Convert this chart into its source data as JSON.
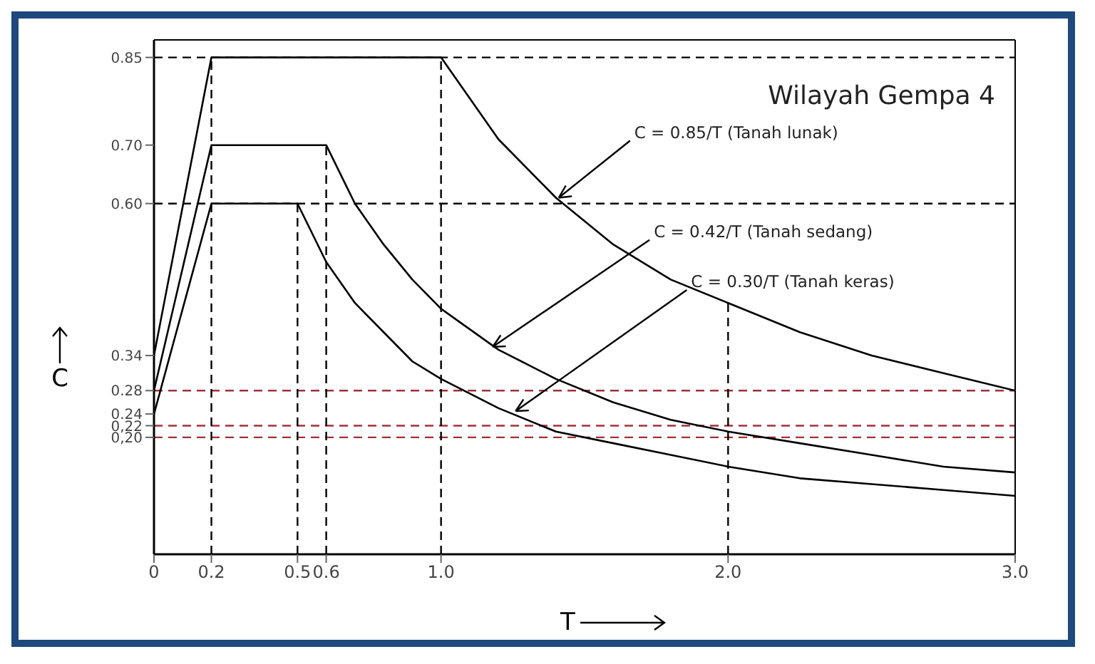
{
  "chart_data": {
    "type": "line",
    "title": "Wilayah Gempa 4",
    "xlabel": "T",
    "ylabel": "C",
    "xlim": [
      0,
      3
    ],
    "xticks": [
      0,
      0.2,
      0.5,
      0.6,
      {
        "value": 1,
        "label": "1.0"
      },
      {
        "value": 2,
        "label": "2.0"
      },
      {
        "value": 3,
        "label": "3.0"
      }
    ],
    "ylim": [
      0,
      0.88
    ],
    "yticks": [
      {
        "value": 0.2,
        "label": "0,20"
      },
      {
        "value": 0.22,
        "label": "0,22"
      },
      0.24,
      0.28,
      0.34,
      {
        "value": 0.6,
        "label": "0.60"
      },
      {
        "value": 0.7,
        "label": "0.70"
      },
      0.85
    ],
    "marker": "none",
    "line_style": "solid",
    "series": [
      {
        "color": "#000000",
        "x": [
          0,
          0.2,
          1.0,
          1.2,
          1.4,
          1.6,
          1.8,
          2.0,
          2.25,
          2.5,
          2.75,
          3.0
        ],
        "values": [
          0.34,
          0.85,
          0.85,
          0.71,
          0.61,
          0.53,
          0.47,
          0.43,
          0.38,
          0.34,
          0.31,
          0.28
        ]
      },
      {
        "color": "#000000",
        "x": [
          0,
          0.2,
          0.6,
          0.7,
          0.8,
          0.9,
          1.0,
          1.2,
          1.4,
          1.6,
          1.8,
          2.0,
          2.25,
          2.5,
          2.75,
          3.0
        ],
        "values": [
          0.28,
          0.7,
          0.7,
          0.6,
          0.53,
          0.47,
          0.42,
          0.35,
          0.3,
          0.26,
          0.23,
          0.21,
          0.19,
          0.17,
          0.15,
          0.14
        ]
      },
      {
        "color": "#000000",
        "x": [
          0,
          0.2,
          0.5,
          0.6,
          0.7,
          0.8,
          0.9,
          1.0,
          1.2,
          1.4,
          1.6,
          1.8,
          2.0,
          2.25,
          2.5,
          2.75,
          3.0
        ],
        "values": [
          0.24,
          0.6,
          0.6,
          0.5,
          0.43,
          0.38,
          0.33,
          0.3,
          0.25,
          0.21,
          0.19,
          0.17,
          0.15,
          0.13,
          0.12,
          0.11,
          0.1
        ]
      }
    ],
    "ref_lines": [
      {
        "axis": "y",
        "value": 0.85,
        "color": "#000000",
        "line_style": "dashed"
      },
      {
        "axis": "y",
        "value": 0.6,
        "color": "#000000",
        "line_style": "dashed"
      },
      {
        "axis": "y",
        "value": 0.28,
        "color": "#a0303a",
        "line_style": "dashed"
      },
      {
        "axis": "y",
        "value": 0.22,
        "color": "#a0303a",
        "line_style": "dashed"
      },
      {
        "axis": "y",
        "value": 0.2,
        "color": "#a0303a",
        "line_style": "dashed"
      },
      {
        "axis": "x",
        "value": 0.2,
        "color": "#000000",
        "line_style": "dashed"
      },
      {
        "axis": "x",
        "value": 0.5,
        "color": "#000000",
        "line_style": "dashed"
      },
      {
        "axis": "x",
        "value": 0.6,
        "color": "#000000",
        "line_style": "dashed"
      },
      {
        "axis": "x",
        "value": 1.0,
        "color": "#000000",
        "line_style": "dashed"
      },
      {
        "axis": "x",
        "value": 2.0,
        "color": "#000000",
        "line_style": "dashed"
      }
    ],
    "annotations": [
      {
        "text": "C = 0.85/T (Tanah lunak)",
        "x": 1.41,
        "y": 0.61
      },
      {
        "text": "C = 0.42/T (Tanah sedang)",
        "x": 1.18,
        "y": 0.355
      },
      {
        "text": "C = 0.30/T (Tanah keras)",
        "x": 1.26,
        "y": 0.245
      }
    ]
  }
}
